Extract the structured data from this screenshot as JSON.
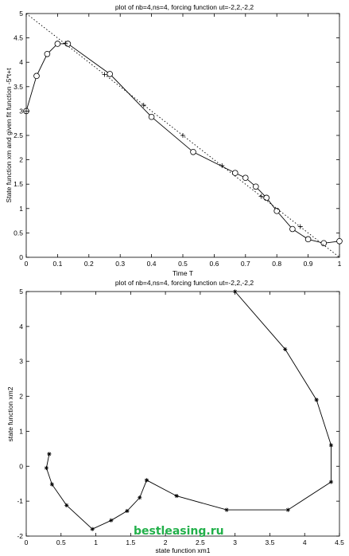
{
  "watermark": "bestleasing.ru",
  "colors": {
    "line": "#000000",
    "background": "#ffffff",
    "watermark": "#22b04a"
  },
  "chart_data": [
    {
      "type": "line",
      "title": "plot of nb=4,ns=4, forcing function ut=-2,2,-2,2",
      "xlabel": "Time T",
      "ylabel": "State function xm and given fit function -5*t+t",
      "xlim": [
        0,
        1
      ],
      "ylim": [
        0,
        5
      ],
      "xticks": [
        "0",
        "0.1",
        "0.2",
        "0.3",
        "0.4",
        "0.5",
        "0.6",
        "0.7",
        "0.8",
        "0.9",
        "1"
      ],
      "yticks": [
        "0",
        "0.5",
        "1",
        "1.5",
        "2",
        "2.5",
        "3",
        "3.5",
        "4",
        "4.5",
        "5"
      ],
      "grid": false,
      "series": [
        {
          "marker": "circle",
          "style": "solid",
          "x": [
            0.0,
            0.033,
            0.067,
            0.1,
            0.133,
            0.267,
            0.4,
            0.533,
            0.667,
            0.7,
            0.733,
            0.767,
            0.8,
            0.85,
            0.9,
            0.95,
            1.0
          ],
          "y": [
            3.0,
            3.72,
            4.17,
            4.38,
            4.38,
            3.76,
            2.88,
            2.16,
            1.73,
            1.63,
            1.45,
            1.22,
            0.95,
            0.58,
            0.37,
            0.29,
            0.33
          ]
        },
        {
          "marker": "plus",
          "style": "none",
          "x": [
            0.0,
            0.125,
            0.25,
            0.375,
            0.5,
            0.625,
            0.75,
            0.875
          ],
          "y": [
            3.0,
            4.39,
            3.75,
            3.12,
            2.5,
            1.88,
            1.25,
            0.63
          ]
        },
        {
          "marker": "none",
          "style": "dotted",
          "x": [
            0.0,
            1.0
          ],
          "y": [
            5.0,
            0.0
          ]
        }
      ]
    },
    {
      "type": "line",
      "title": "plot of nb=4,ns=4, forcing function ut=-2,2,-2,2",
      "xlabel": "state function xm1",
      "ylabel": "state function xm2",
      "xlim": [
        0,
        4.5
      ],
      "ylim": [
        -2,
        5
      ],
      "xticks": [
        "0",
        "0.5",
        "1",
        "1.5",
        "2",
        "2.5",
        "3",
        "3.5",
        "4",
        "4.5"
      ],
      "yticks": [
        "-2",
        "-1",
        "0",
        "1",
        "2",
        "3",
        "4",
        "5"
      ],
      "grid": false,
      "series": [
        {
          "marker": "star",
          "style": "solid",
          "x": [
            3.0,
            3.72,
            4.17,
            4.38,
            4.38,
            3.76,
            2.88,
            2.16,
            1.73,
            1.63,
            1.45,
            1.22,
            0.95,
            0.58,
            0.37,
            0.29,
            0.33
          ],
          "y": [
            5.0,
            3.35,
            1.9,
            0.6,
            -0.45,
            -1.25,
            -1.25,
            -0.85,
            -0.4,
            -0.9,
            -1.28,
            -1.55,
            -1.8,
            -1.12,
            -0.52,
            -0.05,
            0.35
          ]
        }
      ]
    }
  ]
}
